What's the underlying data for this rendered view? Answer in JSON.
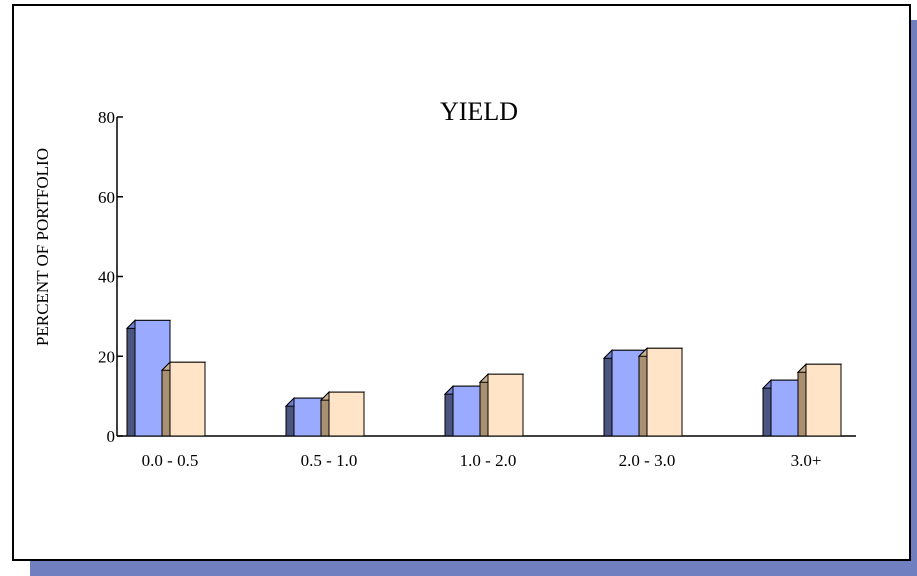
{
  "colors": {
    "shadow": "#6f7fbf",
    "series1_front": "#99aaff",
    "series1_side": "#4a5580",
    "series1_top": "#7080cc",
    "series2_front": "#ffe4c8",
    "series2_side": "#a89070",
    "series2_top": "#c9b090"
  },
  "chart_data": {
    "type": "bar",
    "title": "YIELD",
    "xlabel": "",
    "ylabel": "PERCENT OF PORTFOLIO",
    "ylim": [
      0,
      80
    ],
    "yticks": [
      "0",
      "20",
      "40",
      "60",
      "80"
    ],
    "categories": [
      "0.0 - 0.5",
      "0.5 - 1.0",
      "1.0 - 2.0",
      "2.0 - 3.0",
      "3.0+"
    ],
    "series": [
      {
        "values": [
          29,
          9.5,
          12.5,
          21.5,
          14
        ]
      },
      {
        "values": [
          18.5,
          11,
          15.5,
          22,
          18
        ]
      }
    ],
    "grid": false,
    "legend": "none"
  }
}
